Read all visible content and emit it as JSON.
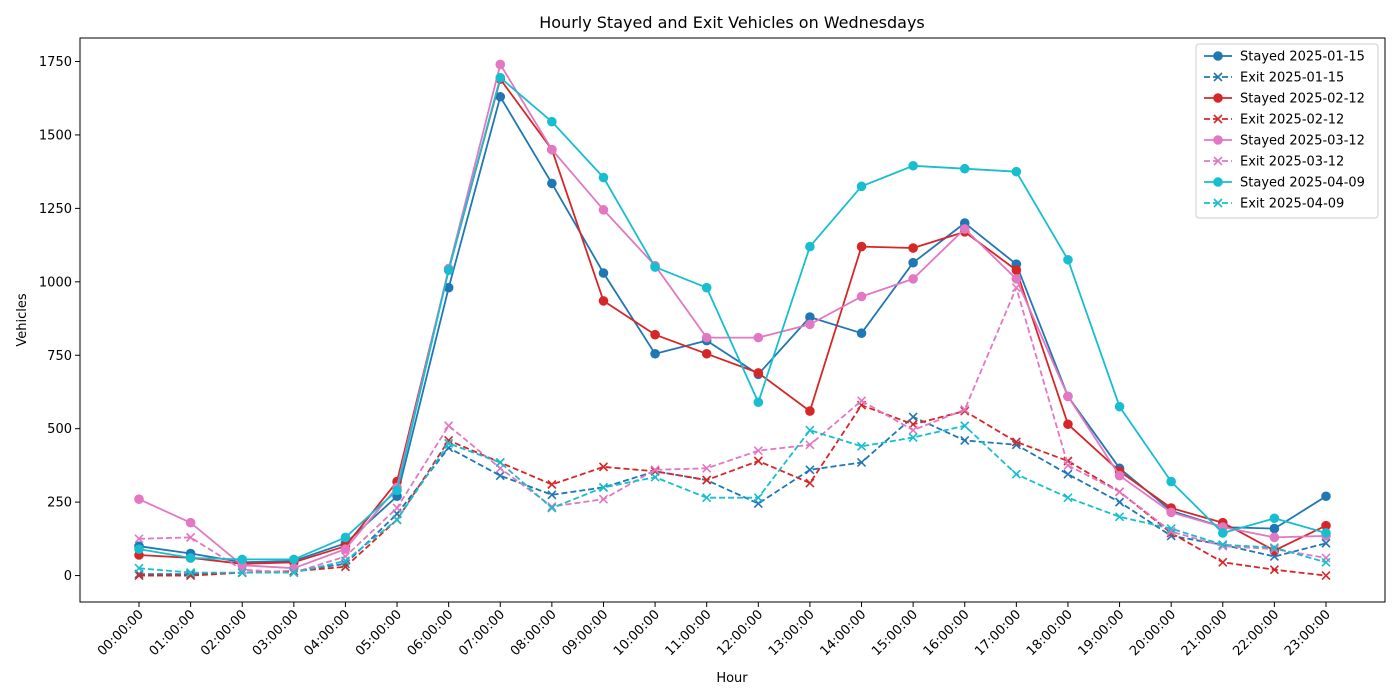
{
  "chart_data": {
    "type": "line",
    "title": "Hourly Stayed and Exit Vehicles on Wednesdays",
    "xlabel": "Hour",
    "ylabel": "Vehicles",
    "ylim": [
      -90,
      1830
    ],
    "yticks": [
      0,
      250,
      500,
      750,
      1000,
      1250,
      1500,
      1750
    ],
    "yticklabels": [
      "0",
      "250",
      "500",
      "750",
      "1000",
      "1250",
      "1500",
      "1750"
    ],
    "grid": false,
    "legend_position": "top-right",
    "categories": [
      "00:00:00",
      "01:00:00",
      "02:00:00",
      "03:00:00",
      "04:00:00",
      "05:00:00",
      "06:00:00",
      "07:00:00",
      "08:00:00",
      "09:00:00",
      "10:00:00",
      "11:00:00",
      "12:00:00",
      "13:00:00",
      "14:00:00",
      "15:00:00",
      "16:00:00",
      "17:00:00",
      "18:00:00",
      "19:00:00",
      "20:00:00",
      "21:00:00",
      "22:00:00",
      "23:00:00"
    ],
    "series": [
      {
        "name": "Stayed 2025-01-15",
        "color": "#1f77b4",
        "style": "solid",
        "marker": "circle",
        "values": [
          100,
          75,
          45,
          50,
          110,
          270,
          980,
          1630,
          1335,
          1030,
          755,
          800,
          685,
          880,
          825,
          1065,
          1200,
          1060,
          610,
          365,
          220,
          165,
          160,
          270
        ]
      },
      {
        "name": "Exit 2025-01-15",
        "color": "#1f77b4",
        "style": "dashed",
        "marker": "x",
        "values": [
          5,
          5,
          10,
          15,
          40,
          210,
          435,
          340,
          275,
          300,
          355,
          325,
          245,
          360,
          385,
          540,
          460,
          445,
          345,
          250,
          135,
          105,
          65,
          110
        ]
      },
      {
        "name": "Stayed 2025-02-12",
        "color": "#d62728",
        "style": "solid",
        "marker": "circle",
        "values": [
          70,
          60,
          40,
          45,
          100,
          320,
          1040,
          1690,
          1450,
          935,
          820,
          755,
          690,
          560,
          1120,
          1115,
          1170,
          1040,
          515,
          355,
          230,
          180,
          85,
          170
        ]
      },
      {
        "name": "Exit 2025-02-12",
        "color": "#d62728",
        "style": "dashed",
        "marker": "x",
        "values": [
          0,
          0,
          10,
          15,
          30,
          190,
          460,
          385,
          310,
          370,
          355,
          325,
          390,
          315,
          580,
          515,
          560,
          455,
          390,
          285,
          145,
          45,
          20,
          0
        ]
      },
      {
        "name": "Stayed 2025-03-12",
        "color": "#e377c2",
        "style": "solid",
        "marker": "circle",
        "values": [
          260,
          180,
          35,
          25,
          90,
          300,
          1045,
          1740,
          1450,
          1245,
          1055,
          810,
          810,
          855,
          950,
          1010,
          1180,
          1010,
          610,
          340,
          215,
          165,
          130,
          135
        ]
      },
      {
        "name": "Exit 2025-03-12",
        "color": "#e377c2",
        "style": "dashed",
        "marker": "x",
        "values": [
          125,
          130,
          20,
          10,
          65,
          230,
          510,
          365,
          235,
          260,
          360,
          365,
          425,
          445,
          595,
          495,
          565,
          980,
          375,
          285,
          150,
          100,
          90,
          60
        ]
      },
      {
        "name": "Stayed 2025-04-09",
        "color": "#17becf",
        "style": "solid",
        "marker": "circle",
        "values": [
          90,
          60,
          55,
          55,
          130,
          290,
          1040,
          1695,
          1545,
          1355,
          1050,
          980,
          590,
          1120,
          1325,
          1395,
          1385,
          1375,
          1075,
          575,
          320,
          145,
          195,
          145
        ]
      },
      {
        "name": "Exit 2025-04-09",
        "color": "#17becf",
        "style": "dashed",
        "marker": "x",
        "values": [
          25,
          10,
          10,
          10,
          50,
          190,
          450,
          385,
          230,
          300,
          335,
          265,
          265,
          495,
          440,
          470,
          510,
          345,
          265,
          200,
          160,
          105,
          95,
          45
        ]
      }
    ]
  }
}
